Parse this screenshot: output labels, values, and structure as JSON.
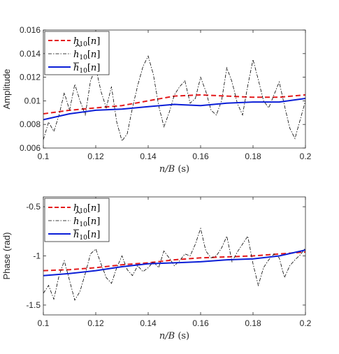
{
  "chart_data": [
    {
      "type": "line",
      "xlabel": "n/B (s)",
      "ylabel": "Amplitude",
      "xlim": [
        0.1,
        0.2
      ],
      "ylim": [
        0.006,
        0.016
      ],
      "xticks": [
        "0.1",
        "0.12",
        "0.14",
        "0.16",
        "0.18",
        "0.2"
      ],
      "yticks": [
        "0.006",
        "0.008",
        "0.01",
        "0.012",
        "0.014",
        "0.016"
      ],
      "legend_position": "top-left",
      "grid": false,
      "series": [
        {
          "name": "h10[n]",
          "style": "dashed",
          "color": "#e41a1c",
          "x": [
            0.1,
            0.11,
            0.12,
            0.13,
            0.14,
            0.15,
            0.16,
            0.17,
            0.18,
            0.19,
            0.2
          ],
          "y": [
            0.0089,
            0.0092,
            0.0094,
            0.0096,
            0.01,
            0.0104,
            0.0105,
            0.0104,
            0.0103,
            0.0103,
            0.0105
          ]
        },
        {
          "name": "ĥ10[n]",
          "style": "dashdot",
          "color": "#000000",
          "x": [
            0.1,
            0.102,
            0.104,
            0.106,
            0.108,
            0.11,
            0.112,
            0.114,
            0.116,
            0.118,
            0.12,
            0.122,
            0.124,
            0.126,
            0.128,
            0.13,
            0.132,
            0.134,
            0.136,
            0.138,
            0.14,
            0.142,
            0.144,
            0.146,
            0.148,
            0.15,
            0.152,
            0.154,
            0.156,
            0.158,
            0.16,
            0.162,
            0.164,
            0.166,
            0.168,
            0.17,
            0.172,
            0.174,
            0.176,
            0.178,
            0.18,
            0.182,
            0.184,
            0.186,
            0.188,
            0.19,
            0.192,
            0.194,
            0.196,
            0.198,
            0.2
          ],
          "y": [
            0.0067,
            0.0082,
            0.0074,
            0.0088,
            0.0107,
            0.0092,
            0.0114,
            0.01,
            0.0088,
            0.0117,
            0.0128,
            0.0108,
            0.0094,
            0.0112,
            0.0082,
            0.0066,
            0.0072,
            0.0094,
            0.0113,
            0.0129,
            0.0138,
            0.0122,
            0.0096,
            0.0078,
            0.009,
            0.0105,
            0.0112,
            0.0117,
            0.0098,
            0.0102,
            0.012,
            0.0108,
            0.0092,
            0.0088,
            0.01,
            0.0128,
            0.0116,
            0.0098,
            0.0088,
            0.0113,
            0.0135,
            0.0118,
            0.01,
            0.0094,
            0.0105,
            0.0116,
            0.0096,
            0.0077,
            0.0068,
            0.0084,
            0.01
          ]
        },
        {
          "name": "h̄10[n]",
          "style": "solid",
          "color": "#0a1ed7",
          "x": [
            0.1,
            0.11,
            0.12,
            0.13,
            0.14,
            0.15,
            0.16,
            0.17,
            0.18,
            0.19,
            0.2
          ],
          "y": [
            0.0084,
            0.0089,
            0.0092,
            0.0093,
            0.0095,
            0.0097,
            0.0096,
            0.0098,
            0.0099,
            0.0099,
            0.0102
          ]
        }
      ]
    },
    {
      "type": "line",
      "xlabel": "n/B (s)",
      "ylabel": "Phase (rad)",
      "xlim": [
        0.1,
        0.2
      ],
      "ylim": [
        -1.6,
        -0.4
      ],
      "xticks": [
        "0.1",
        "0.12",
        "0.14",
        "0.16",
        "0.18",
        "0.2"
      ],
      "yticks": [
        "-0.5",
        "-1",
        "-1.5"
      ],
      "legend_position": "top-left",
      "grid": false,
      "series": [
        {
          "name": "h10[n]",
          "style": "dashed",
          "color": "#e41a1c",
          "x": [
            0.1,
            0.11,
            0.12,
            0.13,
            0.14,
            0.15,
            0.16,
            0.17,
            0.18,
            0.19,
            0.2
          ],
          "y": [
            -1.15,
            -1.14,
            -1.12,
            -1.09,
            -1.07,
            -1.04,
            -1.02,
            -1.01,
            -1.0,
            -0.98,
            -0.96
          ]
        },
        {
          "name": "ĥ10[n]",
          "style": "dashdot",
          "color": "#000000",
          "x": [
            0.1,
            0.102,
            0.104,
            0.106,
            0.108,
            0.11,
            0.112,
            0.114,
            0.116,
            0.118,
            0.12,
            0.122,
            0.124,
            0.126,
            0.128,
            0.13,
            0.132,
            0.134,
            0.136,
            0.138,
            0.14,
            0.142,
            0.144,
            0.146,
            0.148,
            0.15,
            0.152,
            0.154,
            0.156,
            0.158,
            0.16,
            0.162,
            0.164,
            0.166,
            0.168,
            0.17,
            0.172,
            0.174,
            0.176,
            0.178,
            0.18,
            0.182,
            0.184,
            0.186,
            0.188,
            0.19,
            0.192,
            0.194,
            0.196,
            0.198,
            0.2
          ],
          "y": [
            -1.38,
            -1.3,
            -1.44,
            -1.2,
            -1.05,
            -1.25,
            -1.45,
            -1.36,
            -1.18,
            -0.98,
            -0.93,
            -1.08,
            -1.22,
            -1.28,
            -1.12,
            -1.0,
            -1.14,
            -1.2,
            -1.1,
            -1.16,
            -1.12,
            -1.06,
            -1.12,
            -0.95,
            -1.02,
            -1.1,
            -1.05,
            -0.98,
            -1.0,
            -0.88,
            -0.72,
            -0.95,
            -1.02,
            -1.0,
            -0.92,
            -0.8,
            -1.06,
            -0.96,
            -0.88,
            -0.8,
            -1.08,
            -1.3,
            -1.12,
            -1.04,
            -0.98,
            -1.02,
            -1.22,
            -1.1,
            -1.04,
            -0.99,
            -0.92
          ]
        },
        {
          "name": "h̄10[n]",
          "style": "solid",
          "color": "#0a1ed7",
          "x": [
            0.1,
            0.11,
            0.12,
            0.13,
            0.14,
            0.15,
            0.16,
            0.17,
            0.18,
            0.19,
            0.2
          ],
          "y": [
            -1.2,
            -1.18,
            -1.15,
            -1.11,
            -1.08,
            -1.07,
            -1.06,
            -1.04,
            -1.03,
            -1.0,
            -0.94
          ]
        }
      ]
    }
  ]
}
